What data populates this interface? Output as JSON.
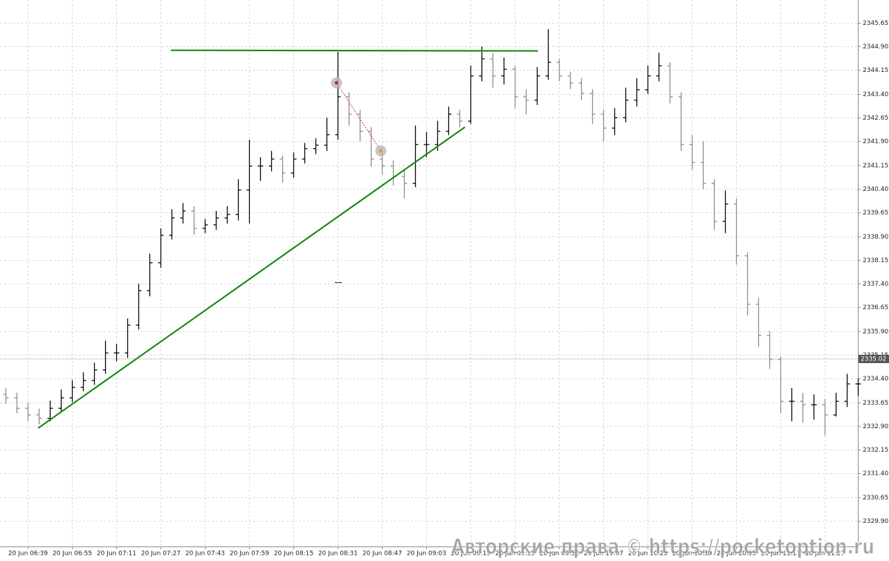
{
  "chart_data": {
    "type": "ohlc",
    "categories": [
      null,
      null,
      "20 Jun 06:39",
      null,
      null,
      null,
      "20 Jun 06:55",
      null,
      null,
      null,
      "20 Jun 07:11",
      null,
      null,
      null,
      "20 Jun 07:27",
      null,
      null,
      null,
      "20 Jun 07:43",
      null,
      null,
      null,
      "20 Jun 07:59",
      null,
      null,
      null,
      "20 Jun 08:15",
      null,
      null,
      null,
      "20 Jun 08:31",
      null,
      null,
      null,
      "20 Jun 08:47",
      null,
      null,
      null,
      "20 Jun 09:03",
      null,
      null,
      null,
      "20 Jun 09:19",
      null,
      null,
      null,
      "20 Jun 09:35",
      null,
      null,
      null,
      "20 Jun 09:51",
      null,
      null,
      null,
      "20 Jun 10:07",
      null,
      null,
      null,
      "20 Jun 10:23",
      null,
      null,
      null,
      "20 Jun 10:39",
      null,
      null,
      null,
      "20 Jun 10:55",
      null,
      null,
      null,
      "20 Jun 11:11",
      null,
      null,
      null,
      "20 Jun 11:27",
      null,
      null,
      null
    ],
    "open": [
      2333.9,
      2333.79,
      2333.46,
      2333.25,
      2333.14,
      2333.46,
      2333.79,
      2334.12,
      2334.34,
      2334.67,
      2335.21,
      2335.21,
      2336.09,
      2337.18,
      2338.06,
      2338.93,
      2339.48,
      2339.7,
      2339.15,
      2339.26,
      2339.48,
      2339.59,
      2340.36,
      2341.12,
      2341.12,
      2341.34,
      2340.9,
      2341.34,
      2341.67,
      2341.78,
      2342.11,
      2343.31,
      2342.76,
      2342.22,
      2341.34,
      2341.12,
      2340.79,
      2340.57,
      2341.8,
      2341.8,
      2342.22,
      2342.76,
      2342.54,
      2343.97,
      2344.51,
      2343.97,
      2344.18,
      2343.31,
      2343.2,
      2343.97,
      2344.4,
      2343.97,
      2343.75,
      2343.42,
      2342.76,
      2342.32,
      2342.65,
      2343.2,
      2343.53,
      2343.97,
      2344.29,
      2343.31,
      2341.8,
      2341.23,
      2340.57,
      2339.37,
      2339.92,
      2338.28,
      2336.75,
      2335.76,
      2335.0,
      2333.68,
      2333.68,
      2333.57,
      2333.57,
      2333.25,
      2333.68,
      2334.23
    ],
    "high": [
      2334.1,
      2333.95,
      2333.65,
      2333.45,
      2333.7,
      2334.05,
      2334.35,
      2334.6,
      2334.9,
      2335.6,
      2335.5,
      2336.3,
      2337.4,
      2338.35,
      2339.15,
      2339.75,
      2339.95,
      2339.85,
      2339.45,
      2339.7,
      2339.85,
      2340.7,
      2341.95,
      2341.4,
      2341.6,
      2341.45,
      2341.55,
      2341.85,
      2342.0,
      2342.65,
      2344.73,
      2343.45,
      2342.9,
      2342.35,
      2341.55,
      2341.3,
      2341.0,
      2342.4,
      2342.2,
      2342.55,
      2343.0,
      2342.9,
      2344.3,
      2344.9,
      2344.7,
      2344.55,
      2344.3,
      2343.55,
      2344.25,
      2345.45,
      2344.5,
      2344.1,
      2343.9,
      2343.55,
      2342.9,
      2342.95,
      2343.6,
      2343.9,
      2344.3,
      2344.7,
      2344.4,
      2343.45,
      2342.1,
      2341.9,
      2340.7,
      2340.35,
      2340.1,
      2338.4,
      2336.95,
      2335.9,
      2335.1,
      2334.1,
      2333.95,
      2333.9,
      2333.75,
      2333.95,
      2334.55,
      2334.4
    ],
    "low": [
      2333.6,
      2333.3,
      2333.05,
      2332.95,
      2333.05,
      2333.35,
      2333.65,
      2334.0,
      2334.2,
      2334.55,
      2334.95,
      2335.05,
      2335.95,
      2337.0,
      2337.9,
      2338.8,
      2339.3,
      2338.95,
      2339.0,
      2339.1,
      2339.3,
      2339.4,
      2339.3,
      2340.65,
      2340.95,
      2340.6,
      2340.75,
      2341.2,
      2341.5,
      2341.6,
      2341.95,
      2342.4,
      2341.9,
      2341.1,
      2340.85,
      2340.5,
      2340.1,
      2340.45,
      2341.4,
      2341.6,
      2342.1,
      2342.35,
      2342.45,
      2343.8,
      2343.6,
      2343.7,
      2342.95,
      2342.75,
      2343.05,
      2343.85,
      2343.8,
      2343.55,
      2343.2,
      2342.45,
      2341.9,
      2342.1,
      2342.5,
      2343.0,
      2343.4,
      2343.8,
      2343.1,
      2341.6,
      2341.0,
      2340.4,
      2339.1,
      2339.0,
      2338.0,
      2336.4,
      2335.4,
      2334.7,
      2333.3,
      2333.05,
      2333.0,
      2333.1,
      2332.6,
      2333.2,
      2333.5,
      2333.85
    ],
    "close": [
      2333.79,
      2333.46,
      2333.25,
      2333.14,
      2333.46,
      2333.79,
      2334.12,
      2334.34,
      2334.67,
      2335.21,
      2335.21,
      2336.09,
      2337.18,
      2338.06,
      2338.93,
      2339.48,
      2339.7,
      2339.15,
      2339.26,
      2339.48,
      2339.59,
      2340.36,
      2341.12,
      2341.12,
      2341.34,
      2340.9,
      2341.34,
      2341.67,
      2341.78,
      2342.11,
      2343.31,
      2342.76,
      2342.22,
      2341.34,
      2341.12,
      2340.79,
      2340.57,
      2341.8,
      2341.8,
      2342.22,
      2342.76,
      2342.54,
      2343.97,
      2344.51,
      2343.97,
      2344.18,
      2343.31,
      2343.2,
      2343.97,
      2344.4,
      2343.97,
      2343.75,
      2343.42,
      2342.76,
      2342.32,
      2342.65,
      2343.2,
      2343.53,
      2343.97,
      2344.29,
      2343.31,
      2341.8,
      2341.23,
      2340.57,
      2339.37,
      2339.92,
      2338.28,
      2336.75,
      2335.76,
      2335.0,
      2333.68,
      2333.68,
      2333.57,
      2333.57,
      2333.25,
      2333.68,
      2334.23,
      2334.23
    ],
    "up_color": "#000000",
    "down_color": "#8a8a8a",
    "ylim": [
      2329.09,
      2346.37
    ],
    "yticks": [
      2345.65,
      {
        "value": 2344.9,
        "label": "2344.90"
      },
      2344.15,
      {
        "value": 2343.4,
        "label": "2343.40"
      },
      2342.65,
      {
        "value": 2341.9,
        "label": "2341.90"
      },
      2341.15,
      {
        "value": 2340.4,
        "label": "2340.40"
      },
      2339.65,
      {
        "value": 2338.9,
        "label": "2338.90"
      },
      2338.15,
      {
        "value": 2337.4,
        "label": "2337.40"
      },
      2336.65,
      {
        "value": 2335.9,
        "label": "2335.90"
      },
      2335.15,
      {
        "value": 2334.4,
        "label": "2334.40"
      },
      2333.65,
      {
        "value": 2332.9,
        "label": "2332.90"
      },
      2332.15,
      {
        "value": 2331.4,
        "label": "2331.40"
      },
      2330.65,
      {
        "value": 2329.9,
        "label": "2329.90"
      }
    ],
    "grid": true,
    "current_price": 2335.02,
    "trendlines": [
      {
        "x": [
          2.94,
          41.5
        ],
        "y": [
          2332.83,
          2342.35
        ],
        "color": "#138a13"
      },
      {
        "x": [
          14.94,
          48.1
        ],
        "y": [
          2344.78,
          2344.76
        ],
        "color": "#138a13"
      }
    ],
    "trade": {
      "x": [
        29.9,
        33.9
      ],
      "y": [
        2343.75,
        2341.6
      ],
      "color": "#d22020"
    },
    "watermark": "Авторские права © https://pocketoption.ru"
  }
}
